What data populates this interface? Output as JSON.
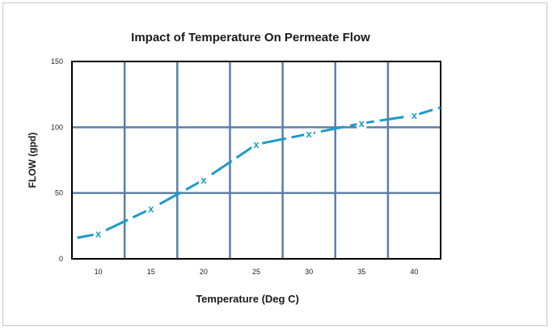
{
  "chart_data": {
    "type": "line",
    "title": "Impact of Temperature On Permeate Flow",
    "xlabel": "Temperature (Deg C)",
    "ylabel": "FLOW (gpd)",
    "x_ticks": [
      "10",
      "15",
      "20",
      "25",
      "30",
      "35",
      "40"
    ],
    "y_ticks": [
      "0",
      "50",
      "100",
      "150"
    ],
    "xlim": [
      7.5,
      42.5
    ],
    "ylim": [
      0,
      150
    ],
    "grid": true,
    "marker_symbol": "x",
    "series": [
      {
        "points": [
          {
            "x": 10,
            "y": 19
          },
          {
            "x": 15,
            "y": 38
          },
          {
            "x": 20,
            "y": 60
          },
          {
            "x": 25,
            "y": 87
          },
          {
            "x": 30,
            "y": 95
          },
          {
            "x": 35,
            "y": 103
          },
          {
            "x": 40,
            "y": 109
          }
        ],
        "line_start": {
          "x": 8,
          "y": 16
        },
        "line_end": {
          "x": 42.5,
          "y": 115
        }
      }
    ],
    "colors": {
      "series": "#1a9bcb",
      "grid": "#5b7fa6",
      "axis": "#000000"
    }
  }
}
